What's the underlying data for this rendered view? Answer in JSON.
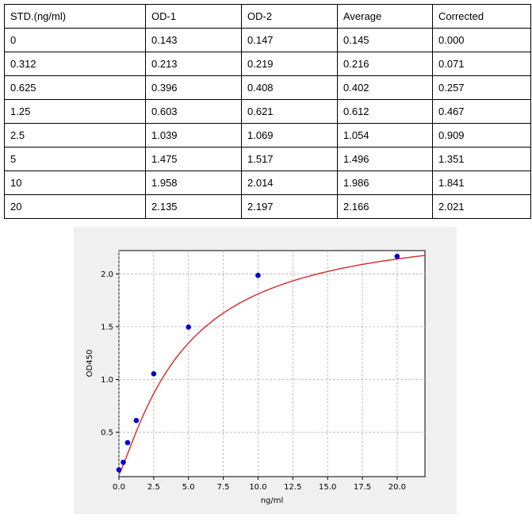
{
  "table": {
    "headers": [
      "STD.(ng/ml)",
      "OD-1",
      "OD-2",
      "Average",
      "Corrected"
    ],
    "rows": [
      [
        "0",
        "0.143",
        "0.147",
        "0.145",
        "0.000"
      ],
      [
        "0.312",
        "0.213",
        "0.219",
        "0.216",
        "0.071"
      ],
      [
        "0.625",
        "0.396",
        "0.408",
        "0.402",
        "0.257"
      ],
      [
        "1.25",
        "0.603",
        "0.621",
        "0.612",
        "0.467"
      ],
      [
        "2.5",
        "1.039",
        "1.069",
        "1.054",
        "0.909"
      ],
      [
        "5",
        "1.475",
        "1.517",
        "1.496",
        "1.351"
      ],
      [
        "10",
        "1.958",
        "2.014",
        "1.986",
        "1.841"
      ],
      [
        "20",
        "2.135",
        "2.197",
        "2.166",
        "2.021"
      ]
    ]
  },
  "chart_data": {
    "type": "scatter",
    "xlabel": "ng/ml",
    "ylabel": "OD450",
    "xlim": [
      0,
      22
    ],
    "ylim": [
      0.08,
      2.22
    ],
    "xticks": [
      "0.0",
      "2.5",
      "5.0",
      "7.5",
      "10.0",
      "12.5",
      "15.0",
      "17.5",
      "20.0"
    ],
    "yticks": [
      "0.5",
      "1.0",
      "1.5",
      "2.0"
    ],
    "grid": true,
    "points": {
      "x": [
        0,
        0.312,
        0.625,
        1.25,
        2.5,
        5,
        10,
        20
      ],
      "y": [
        0.145,
        0.216,
        0.402,
        0.612,
        1.054,
        1.496,
        1.986,
        2.166
      ]
    },
    "fit_curve": {
      "type": "four-parameter logistic",
      "a": 0.1,
      "d": 2.5,
      "c": 4.7,
      "b": 1.2
    },
    "colors": {
      "points": "#0000cc",
      "curve": "#d62728",
      "grid": "#b0b0b0"
    }
  }
}
